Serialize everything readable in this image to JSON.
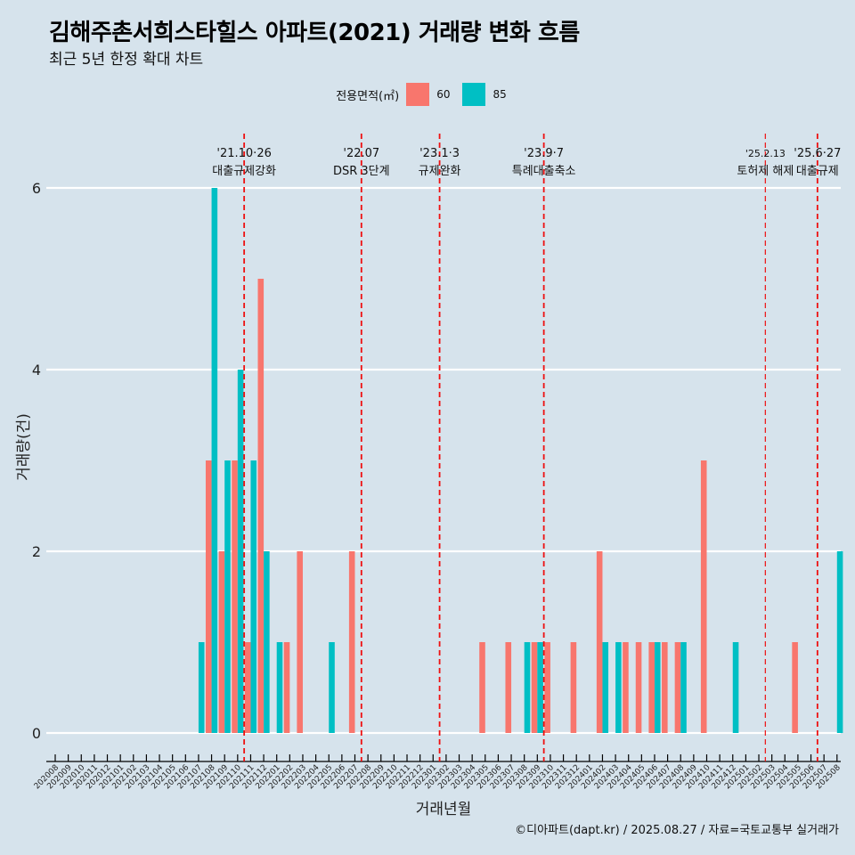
{
  "title": "김해주촌서희스타힐스 아파트(2021) 거래량 변화 흐름",
  "subtitle": "최근 5년 한정 확대 차트",
  "caption": "©디아파트(dapt.kr) / 2025.08.27 / 자료=국토교통부 실거래가",
  "legend": {
    "title": "전용면적(㎡)",
    "items": [
      {
        "label": "60",
        "color": "#f8766d"
      },
      {
        "label": "85",
        "color": "#00bfc4"
      }
    ]
  },
  "chart_data": {
    "type": "bar",
    "xlabel": "거래년월",
    "ylabel": "거래량(건)",
    "ylim": [
      0,
      6
    ],
    "yticks": [
      0,
      2,
      4,
      6
    ],
    "categories": [
      "202008",
      "202009",
      "202010",
      "202011",
      "202012",
      "202101",
      "202102",
      "202103",
      "202104",
      "202105",
      "202106",
      "202107",
      "202108",
      "202109",
      "202110",
      "202111",
      "202112",
      "202201",
      "202202",
      "202203",
      "202204",
      "202205",
      "202206",
      "202207",
      "202208",
      "202209",
      "202210",
      "202211",
      "202212",
      "202301",
      "202302",
      "202303",
      "202304",
      "202305",
      "202306",
      "202307",
      "202308",
      "202309",
      "202310",
      "202311",
      "202312",
      "202401",
      "202402",
      "202403",
      "202404",
      "202405",
      "202406",
      "202407",
      "202408",
      "202409",
      "202410",
      "202411",
      "202412",
      "202501",
      "202502",
      "202503",
      "202504",
      "202505",
      "202506",
      "202507",
      "202508"
    ],
    "series": [
      {
        "name": "60",
        "color": "#f8766d",
        "values": [
          0,
          0,
          0,
          0,
          0,
          0,
          0,
          0,
          0,
          0,
          0,
          0,
          3,
          2,
          3,
          1,
          5,
          0,
          1,
          2,
          0,
          0,
          0,
          2,
          0,
          0,
          0,
          0,
          0,
          0,
          0,
          0,
          0,
          1,
          0,
          1,
          0,
          1,
          1,
          0,
          1,
          0,
          2,
          0,
          1,
          1,
          1,
          1,
          1,
          0,
          3,
          0,
          0,
          0,
          0,
          0,
          0,
          1,
          0,
          0,
          0
        ]
      },
      {
        "name": "85",
        "color": "#00bfc4",
        "values": [
          0,
          0,
          0,
          0,
          0,
          0,
          0,
          0,
          0,
          0,
          0,
          1,
          6,
          3,
          4,
          3,
          2,
          1,
          0,
          0,
          0,
          1,
          0,
          0,
          0,
          0,
          0,
          0,
          0,
          0,
          0,
          0,
          0,
          0,
          0,
          0,
          1,
          1,
          0,
          0,
          0,
          0,
          1,
          1,
          0,
          0,
          1,
          0,
          1,
          0,
          0,
          0,
          1,
          0,
          0,
          0,
          0,
          0,
          0,
          0,
          2
        ]
      }
    ],
    "annotations": [
      {
        "pos": 14.5,
        "date": "'21.10·26",
        "label": "대출규제강화"
      },
      {
        "pos": 23.5,
        "date": "'22.07",
        "label": "DSR 3단계"
      },
      {
        "pos": 29.5,
        "date": "'23.1·3",
        "label": "규제완화"
      },
      {
        "pos": 37.5,
        "date": "'23.9·7",
        "label": "특례대출축소"
      },
      {
        "pos": 54.5,
        "date": "'25.2.13",
        "label": "토허제 해제"
      },
      {
        "pos": 58.5,
        "date": "'25.6·27",
        "label": "대출규제"
      }
    ]
  }
}
